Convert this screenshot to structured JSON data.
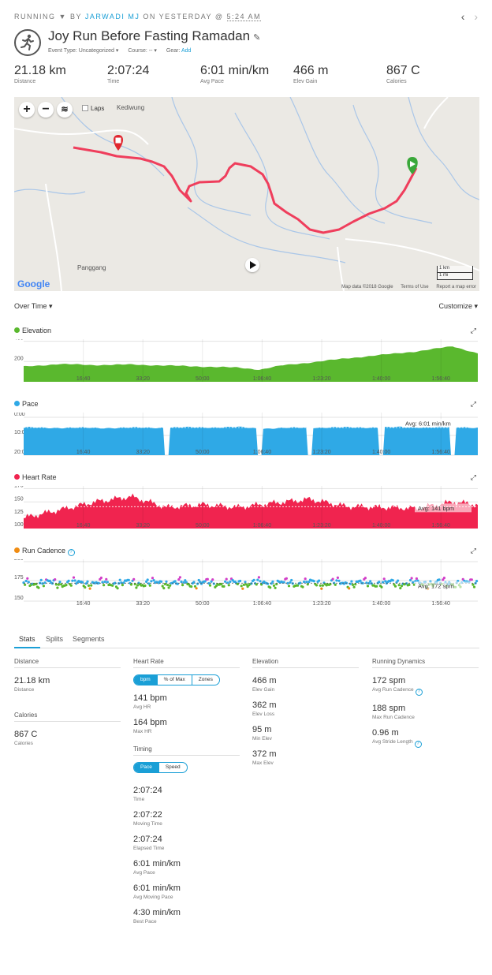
{
  "header": {
    "sport": "RUNNING",
    "by": "BY",
    "author": "JARWADI MJ",
    "on": "ON YESTERDAY @",
    "time": "5:24 AM",
    "title": "Joy Run Before Fasting Ramadan",
    "event_type": "Event Type: Uncategorized",
    "course": "Course: --",
    "gear_label": "Gear:",
    "gear_add": "Add"
  },
  "summary": [
    {
      "value": "21.18 km",
      "label": "Distance"
    },
    {
      "value": "2:07:24",
      "label": "Time"
    },
    {
      "value": "6:01 min/km",
      "label": "Avg Pace"
    },
    {
      "value": "466 m",
      "label": "Elev Gain"
    },
    {
      "value": "867 C",
      "label": "Calories"
    }
  ],
  "map": {
    "laps_label": "Laps",
    "labels": [
      "Kediwung",
      "Panggang"
    ],
    "google": "Google",
    "map_data": "Map data ©2018 Google",
    "terms": "Terms of Use",
    "report": "Report a map error",
    "scale_km": "1 km",
    "scale_mi": "1 mi",
    "route_color": "#ef3e5c"
  },
  "charts_header": {
    "left": "Over Time",
    "right": "Customize"
  },
  "chart_data": [
    {
      "type": "area",
      "title": "Elevation",
      "color": "#5ab82e",
      "x_ticks": [
        "16:40",
        "33:20",
        "50:00",
        "1:06:40",
        "1:23:20",
        "1:40:00",
        "1:56:40"
      ],
      "y_ticks": [
        "400",
        "200"
      ],
      "ylim": [
        0,
        420
      ],
      "x": [
        0,
        10,
        20,
        30,
        40,
        50,
        60,
        66,
        72,
        80,
        90,
        100,
        110,
        120,
        127
      ],
      "values": [
        150,
        175,
        165,
        170,
        160,
        150,
        140,
        120,
        160,
        190,
        230,
        265,
        300,
        350,
        280
      ]
    },
    {
      "type": "area",
      "title": "Pace",
      "color": "#2fa9e6",
      "x_ticks": [
        "16:40",
        "33:20",
        "50:00",
        "1:06:40",
        "1:23:20",
        "1:40:00",
        "1:56:40"
      ],
      "y_ticks": [
        "0:00",
        "10:00",
        "20:00"
      ],
      "average_label": "Avg: 6:01 min/km",
      "x": [
        0,
        20,
        40,
        60,
        66,
        80,
        100,
        120,
        127
      ],
      "values": [
        6.0,
        6.2,
        6.0,
        5.8,
        6.5,
        6.0,
        5.9,
        5.7,
        6.0
      ]
    },
    {
      "type": "area",
      "title": "Heart Rate",
      "color": "#f0244f",
      "x_ticks": [
        "16:40",
        "33:20",
        "50:00",
        "1:06:40",
        "1:23:20",
        "1:40:00",
        "1:56:40"
      ],
      "y_ticks": [
        "175",
        "150",
        "125",
        "100"
      ],
      "ylim": [
        100,
        180
      ],
      "average_label": "Avg: 141 bpm",
      "x": [
        0,
        10,
        20,
        30,
        40,
        50,
        60,
        70,
        80,
        90,
        100,
        110,
        120,
        127
      ],
      "values": [
        120,
        135,
        150,
        160,
        140,
        145,
        140,
        148,
        155,
        142,
        140,
        138,
        150,
        145
      ]
    },
    {
      "type": "scatter",
      "title": "Run Cadence",
      "x_ticks": [
        "16:40",
        "33:20",
        "50:00",
        "1:06:40",
        "1:23:20",
        "1:40:00",
        "1:56:40"
      ],
      "y_ticks": [
        "200",
        "175",
        "150"
      ],
      "ylim": [
        150,
        200
      ],
      "average_label": "Avg: 172 spm"
    }
  ],
  "tabs": [
    "Stats",
    "Splits",
    "Segments"
  ],
  "stats": {
    "distance_head": "Distance",
    "distance": {
      "value": "21.18 km",
      "label": "Distance"
    },
    "calories_head": "Calories",
    "calories": {
      "value": "867 C",
      "label": "Calories"
    },
    "hr_head": "Heart Rate",
    "hr_toggle": [
      "bpm",
      "% of Max",
      "Zones"
    ],
    "hr_items": [
      {
        "value": "141 bpm",
        "label": "Avg HR"
      },
      {
        "value": "164 bpm",
        "label": "Max HR"
      }
    ],
    "timing_head": "Timing",
    "timing_toggle": [
      "Pace",
      "Speed"
    ],
    "timing_items": [
      {
        "value": "2:07:24",
        "label": "Time"
      },
      {
        "value": "2:07:22",
        "label": "Moving Time"
      },
      {
        "value": "2:07:24",
        "label": "Elapsed Time"
      },
      {
        "value": "6:01 min/km",
        "label": "Avg Pace"
      },
      {
        "value": "6:01 min/km",
        "label": "Avg Moving Pace"
      },
      {
        "value": "4:30 min/km",
        "label": "Best Pace"
      }
    ],
    "elev_head": "Elevation",
    "elev_items": [
      {
        "value": "466 m",
        "label": "Elev Gain"
      },
      {
        "value": "362 m",
        "label": "Elev Loss"
      },
      {
        "value": "95 m",
        "label": "Min Elev"
      },
      {
        "value": "372 m",
        "label": "Max Elev"
      }
    ],
    "rd_head": "Running Dynamics",
    "rd_items": [
      {
        "value": "172 spm",
        "label": "Avg Run Cadence"
      },
      {
        "value": "188 spm",
        "label": "Max Run Cadence"
      },
      {
        "value": "0.96 m",
        "label": "Avg Stride Length"
      }
    ]
  }
}
